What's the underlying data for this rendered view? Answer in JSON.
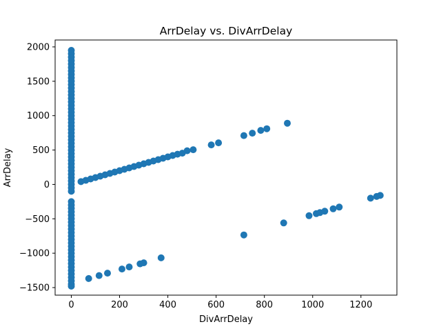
{
  "chart_data": {
    "type": "scatter",
    "title": "ArrDelay vs. DivArrDelay",
    "xlabel": "DivArrDelay",
    "ylabel": "ArrDelay",
    "xlim": [
      -67,
      1349
    ],
    "ylim": [
      -1610,
      2100
    ],
    "xticks": [
      0,
      200,
      400,
      600,
      800,
      1000,
      1200
    ],
    "yticks": [
      -1500,
      -1000,
      -500,
      0,
      500,
      1000,
      1500,
      2000
    ],
    "grid": false,
    "marker_color": "#1f77b4",
    "series": [
      {
        "values": [
          [
            0,
            1950
          ],
          [
            0,
            1900
          ],
          [
            0,
            1850
          ],
          [
            0,
            1800
          ],
          [
            0,
            1750
          ],
          [
            0,
            1700
          ],
          [
            0,
            1650
          ],
          [
            0,
            1600
          ],
          [
            0,
            1550
          ],
          [
            0,
            1500
          ],
          [
            0,
            1450
          ],
          [
            0,
            1400
          ],
          [
            0,
            1350
          ],
          [
            0,
            1300
          ],
          [
            0,
            1250
          ],
          [
            0,
            1200
          ],
          [
            0,
            1150
          ],
          [
            0,
            1100
          ],
          [
            0,
            1050
          ],
          [
            0,
            1000
          ],
          [
            0,
            950
          ],
          [
            0,
            900
          ],
          [
            0,
            850
          ],
          [
            0,
            800
          ],
          [
            0,
            750
          ],
          [
            0,
            700
          ],
          [
            0,
            650
          ],
          [
            0,
            600
          ],
          [
            0,
            550
          ],
          [
            0,
            500
          ],
          [
            0,
            450
          ],
          [
            0,
            400
          ],
          [
            0,
            350
          ],
          [
            0,
            300
          ],
          [
            0,
            250
          ],
          [
            0,
            200
          ],
          [
            0,
            150
          ],
          [
            0,
            100
          ],
          [
            0,
            50
          ],
          [
            0,
            0
          ],
          [
            0,
            -50
          ],
          [
            0,
            -100
          ],
          [
            0,
            -250
          ],
          [
            0,
            -300
          ],
          [
            0,
            -350
          ],
          [
            0,
            -400
          ],
          [
            0,
            -450
          ],
          [
            0,
            -500
          ],
          [
            0,
            -550
          ],
          [
            0,
            -600
          ],
          [
            0,
            -650
          ],
          [
            0,
            -700
          ],
          [
            0,
            -750
          ],
          [
            0,
            -800
          ],
          [
            0,
            -850
          ],
          [
            0,
            -900
          ],
          [
            0,
            -950
          ],
          [
            0,
            -1000
          ],
          [
            0,
            -1050
          ],
          [
            0,
            -1100
          ],
          [
            0,
            -1150
          ],
          [
            0,
            -1200
          ],
          [
            0,
            -1250
          ],
          [
            0,
            -1300
          ],
          [
            0,
            -1350
          ],
          [
            0,
            -1400
          ],
          [
            0,
            -1450
          ],
          [
            0,
            -1480
          ],
          [
            40,
            40
          ],
          [
            60,
            60
          ],
          [
            80,
            80
          ],
          [
            100,
            100
          ],
          [
            120,
            120
          ],
          [
            140,
            140
          ],
          [
            160,
            160
          ],
          [
            180,
            180
          ],
          [
            200,
            200
          ],
          [
            220,
            220
          ],
          [
            240,
            240
          ],
          [
            260,
            260
          ],
          [
            280,
            280
          ],
          [
            300,
            300
          ],
          [
            320,
            320
          ],
          [
            340,
            340
          ],
          [
            360,
            360
          ],
          [
            380,
            380
          ],
          [
            400,
            400
          ],
          [
            420,
            420
          ],
          [
            440,
            440
          ],
          [
            460,
            455
          ],
          [
            480,
            490
          ],
          [
            505,
            505
          ],
          [
            580,
            575
          ],
          [
            610,
            605
          ],
          [
            715,
            710
          ],
          [
            750,
            745
          ],
          [
            785,
            785
          ],
          [
            810,
            810
          ],
          [
            895,
            890
          ],
          [
            72,
            -1368
          ],
          [
            115,
            -1325
          ],
          [
            150,
            -1290
          ],
          [
            210,
            -1230
          ],
          [
            240,
            -1200
          ],
          [
            285,
            -1155
          ],
          [
            300,
            -1140
          ],
          [
            372,
            -1068
          ],
          [
            715,
            -735
          ],
          [
            880,
            -560
          ],
          [
            985,
            -455
          ],
          [
            1015,
            -425
          ],
          [
            1030,
            -410
          ],
          [
            1050,
            -390
          ],
          [
            1085,
            -355
          ],
          [
            1110,
            -330
          ],
          [
            1240,
            -200
          ],
          [
            1265,
            -175
          ],
          [
            1280,
            -160
          ]
        ]
      }
    ]
  }
}
